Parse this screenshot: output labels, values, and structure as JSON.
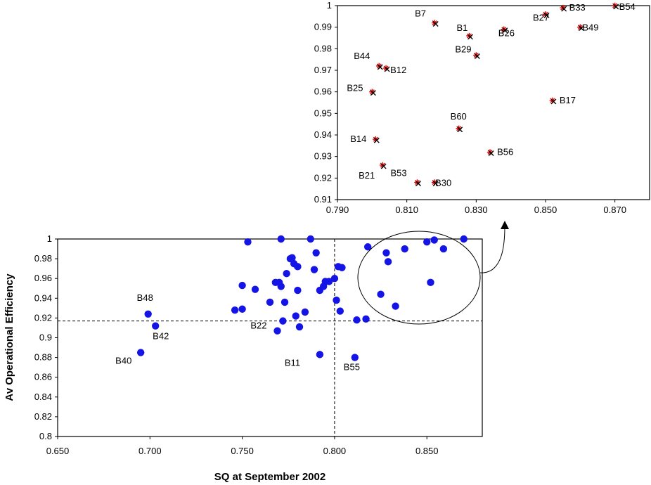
{
  "chart_data": [
    {
      "type": "scatter",
      "title": "",
      "xlabel": "SQ at September 2002",
      "ylabel": "Av Operational Efficiency",
      "xlim": [
        0.65,
        0.88
      ],
      "ylim": [
        0.8,
        1.0
      ],
      "x_ticks": [
        "0.650",
        "0.700",
        "0.750",
        "0.800",
        "0.850"
      ],
      "y_ticks": [
        "0.8",
        "0.82",
        "0.84",
        "0.86",
        "0.88",
        "0.9",
        "0.92",
        "0.94",
        "0.96",
        "0.98",
        "1"
      ],
      "reference_lines": {
        "x": 0.8,
        "y": 0.917
      },
      "marker_color": "#1414e6",
      "grid": false,
      "legend": "none",
      "points": [
        {
          "x": 0.695,
          "y": 0.885,
          "label": "B40"
        },
        {
          "x": 0.699,
          "y": 0.924,
          "label": "B48"
        },
        {
          "x": 0.703,
          "y": 0.912,
          "label": "B42"
        },
        {
          "x": 0.746,
          "y": 0.928,
          "label": ""
        },
        {
          "x": 0.75,
          "y": 0.929,
          "label": ""
        },
        {
          "x": 0.75,
          "y": 0.953,
          "label": ""
        },
        {
          "x": 0.753,
          "y": 0.997,
          "label": ""
        },
        {
          "x": 0.757,
          "y": 0.949,
          "label": ""
        },
        {
          "x": 0.765,
          "y": 0.936,
          "label": ""
        },
        {
          "x": 0.768,
          "y": 0.956,
          "label": ""
        },
        {
          "x": 0.769,
          "y": 0.907,
          "label": ""
        },
        {
          "x": 0.77,
          "y": 0.956,
          "label": ""
        },
        {
          "x": 0.771,
          "y": 0.952,
          "label": ""
        },
        {
          "x": 0.771,
          "y": 1.0,
          "label": ""
        },
        {
          "x": 0.772,
          "y": 0.917,
          "label": "B22"
        },
        {
          "x": 0.773,
          "y": 0.936,
          "label": ""
        },
        {
          "x": 0.774,
          "y": 0.965,
          "label": ""
        },
        {
          "x": 0.776,
          "y": 0.98,
          "label": ""
        },
        {
          "x": 0.777,
          "y": 0.981,
          "label": ""
        },
        {
          "x": 0.778,
          "y": 0.975,
          "label": ""
        },
        {
          "x": 0.779,
          "y": 0.922,
          "label": ""
        },
        {
          "x": 0.78,
          "y": 0.972,
          "label": ""
        },
        {
          "x": 0.78,
          "y": 0.948,
          "label": ""
        },
        {
          "x": 0.781,
          "y": 0.911,
          "label": ""
        },
        {
          "x": 0.784,
          "y": 0.926,
          "label": ""
        },
        {
          "x": 0.787,
          "y": 1.0,
          "label": ""
        },
        {
          "x": 0.789,
          "y": 0.969,
          "label": ""
        },
        {
          "x": 0.79,
          "y": 0.986,
          "label": ""
        },
        {
          "x": 0.792,
          "y": 0.948,
          "label": ""
        },
        {
          "x": 0.792,
          "y": 0.883,
          "label": "B11"
        },
        {
          "x": 0.794,
          "y": 0.952,
          "label": ""
        },
        {
          "x": 0.795,
          "y": 0.957,
          "label": ""
        },
        {
          "x": 0.797,
          "y": 0.957,
          "label": ""
        },
        {
          "x": 0.8,
          "y": 0.96,
          "label": ""
        },
        {
          "x": 0.801,
          "y": 0.938,
          "label": ""
        },
        {
          "x": 0.802,
          "y": 0.972,
          "label": ""
        },
        {
          "x": 0.803,
          "y": 0.927,
          "label": ""
        },
        {
          "x": 0.804,
          "y": 0.971,
          "label": ""
        },
        {
          "x": 0.811,
          "y": 0.88,
          "label": "B55"
        },
        {
          "x": 0.812,
          "y": 0.918,
          "label": ""
        },
        {
          "x": 0.817,
          "y": 0.919,
          "label": ""
        },
        {
          "x": 0.818,
          "y": 0.992,
          "label": ""
        },
        {
          "x": 0.825,
          "y": 0.944,
          "label": ""
        },
        {
          "x": 0.828,
          "y": 0.986,
          "label": ""
        },
        {
          "x": 0.829,
          "y": 0.977,
          "label": ""
        },
        {
          "x": 0.833,
          "y": 0.932,
          "label": ""
        },
        {
          "x": 0.838,
          "y": 0.99,
          "label": ""
        },
        {
          "x": 0.85,
          "y": 0.997,
          "label": ""
        },
        {
          "x": 0.852,
          "y": 0.956,
          "label": ""
        },
        {
          "x": 0.854,
          "y": 0.999,
          "label": ""
        },
        {
          "x": 0.859,
          "y": 0.99,
          "label": ""
        },
        {
          "x": 0.87,
          "y": 1.0,
          "label": ""
        }
      ]
    },
    {
      "type": "scatter",
      "title": "",
      "xlabel": "",
      "ylabel": "",
      "xlim": [
        0.79,
        0.88
      ],
      "ylim": [
        0.91,
        1.0
      ],
      "x_ticks": [
        "0.790",
        "0.810",
        "0.830",
        "0.850",
        "0.870"
      ],
      "y_ticks": [
        "0.91",
        "0.92",
        "0.93",
        "0.94",
        "0.95",
        "0.96",
        "0.97",
        "0.98",
        "0.99",
        "1"
      ],
      "marker_colors": [
        "#e00000",
        "#000000"
      ],
      "grid": false,
      "legend": "none",
      "points": [
        {
          "x": 0.818,
          "y": 0.992,
          "label": "B7"
        },
        {
          "x": 0.828,
          "y": 0.986,
          "label": "B1"
        },
        {
          "x": 0.838,
          "y": 0.989,
          "label": "B26"
        },
        {
          "x": 0.83,
          "y": 0.977,
          "label": "B29"
        },
        {
          "x": 0.802,
          "y": 0.972,
          "label": "B44"
        },
        {
          "x": 0.804,
          "y": 0.971,
          "label": "B12"
        },
        {
          "x": 0.8,
          "y": 0.96,
          "label": "B25"
        },
        {
          "x": 0.85,
          "y": 0.996,
          "label": "B27"
        },
        {
          "x": 0.855,
          "y": 0.999,
          "label": "B33"
        },
        {
          "x": 0.87,
          "y": 1.0,
          "label": "B54"
        },
        {
          "x": 0.86,
          "y": 0.99,
          "label": "B49"
        },
        {
          "x": 0.852,
          "y": 0.956,
          "label": "B17"
        },
        {
          "x": 0.825,
          "y": 0.943,
          "label": "B60"
        },
        {
          "x": 0.801,
          "y": 0.938,
          "label": "B14"
        },
        {
          "x": 0.834,
          "y": 0.932,
          "label": "B56"
        },
        {
          "x": 0.803,
          "y": 0.926,
          "label": "B21"
        },
        {
          "x": 0.813,
          "y": 0.918,
          "label": "B53"
        },
        {
          "x": 0.818,
          "y": 0.918,
          "label": "B30"
        }
      ]
    }
  ]
}
